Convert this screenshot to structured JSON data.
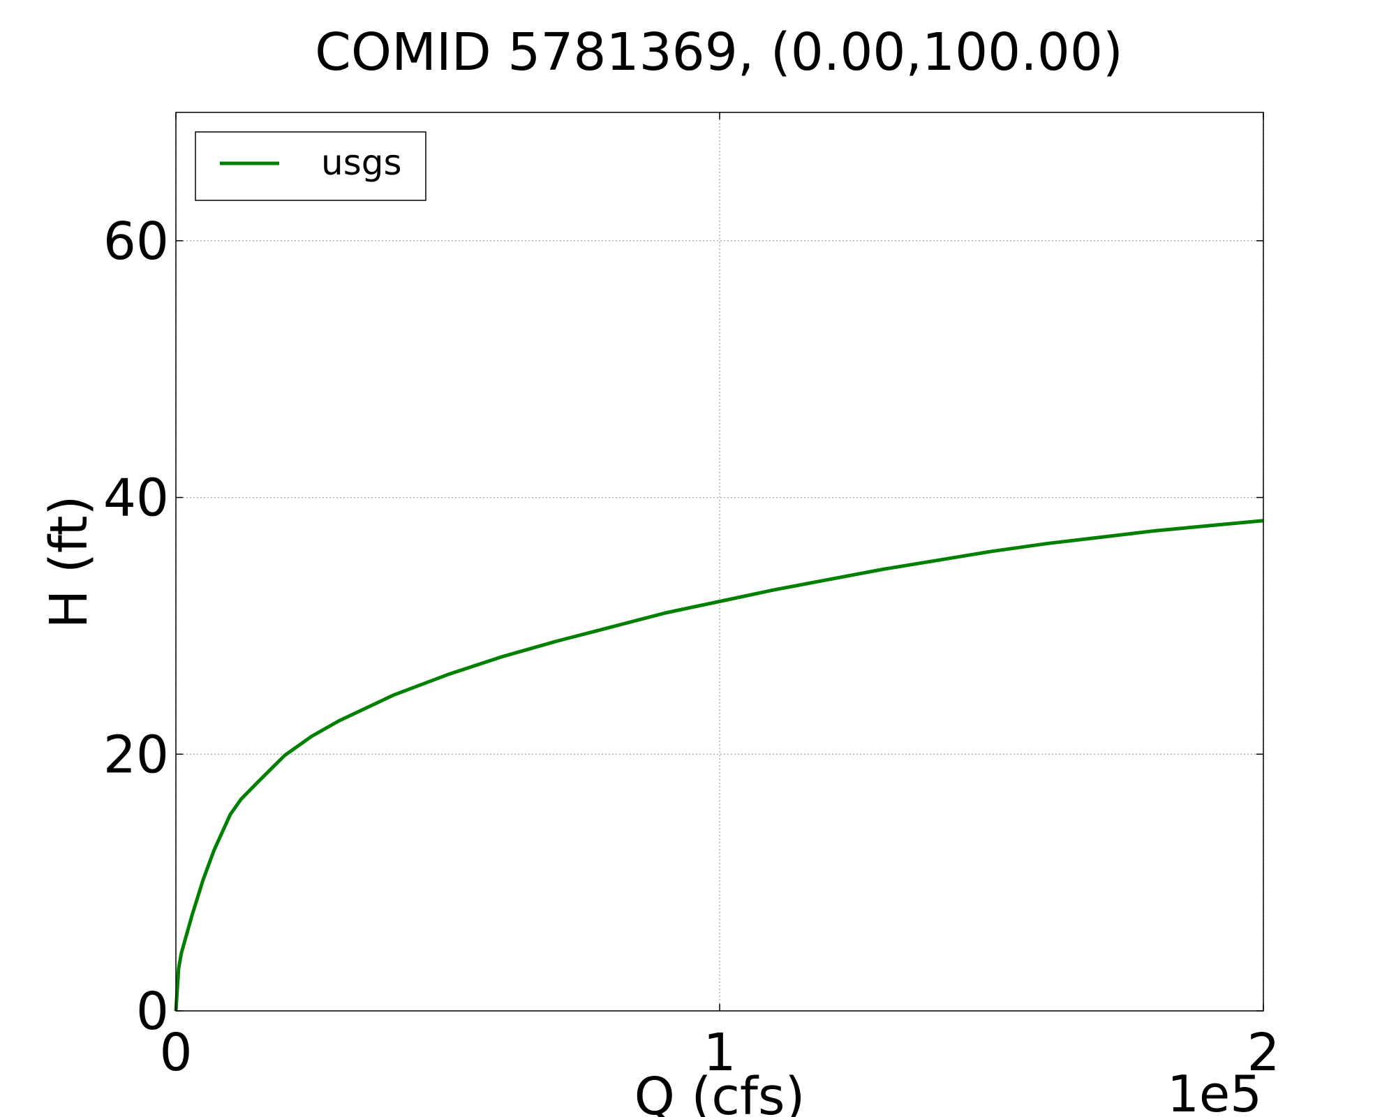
{
  "chart_data": {
    "type": "line",
    "title": "COMID 5781369, (0.00,100.00)",
    "xlabel": "Q (cfs)",
    "ylabel": "H (ft)",
    "x_scale_label": "1e5",
    "xlim": [
      0,
      200000
    ],
    "ylim": [
      0,
      70
    ],
    "xticks": [
      0,
      100000,
      200000
    ],
    "xtick_labels": [
      "0",
      "1",
      "2"
    ],
    "yticks": [
      0,
      20,
      40,
      60
    ],
    "ytick_labels": [
      "0",
      "20",
      "40",
      "60"
    ],
    "grid": true,
    "legend_position": "upper left",
    "series": [
      {
        "name": "usgs",
        "color": "#008000",
        "x": [
          0,
          500,
          1000,
          2000,
          3000,
          5000,
          7000,
          10000,
          12000,
          15000,
          20000,
          25000,
          30000,
          40000,
          50000,
          60000,
          70000,
          80000,
          90000,
          100000,
          110000,
          120000,
          130000,
          140000,
          150000,
          160000,
          170000,
          180000,
          190000,
          200000
        ],
        "y": [
          0,
          3.3,
          4.5,
          6.0,
          7.5,
          10.2,
          12.5,
          15.3,
          16.5,
          17.8,
          19.9,
          21.4,
          22.6,
          24.6,
          26.2,
          27.6,
          28.8,
          29.9,
          31.0,
          31.9,
          32.8,
          33.6,
          34.4,
          35.1,
          35.8,
          36.4,
          36.9,
          37.4,
          37.8,
          38.2
        ]
      }
    ]
  }
}
